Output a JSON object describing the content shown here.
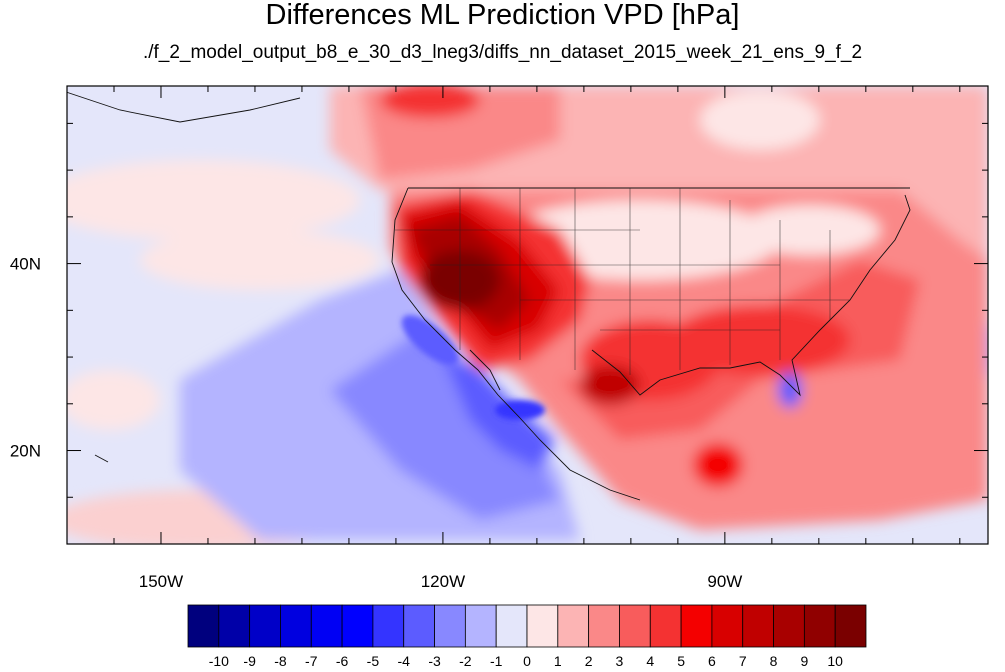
{
  "title": "Differences ML Prediction VPD [hPa]",
  "subtitle": "./f_2_model_output_b8_e_30_d3_lneg3/diffs_nn_dataset_2015_week_21_ens_9_f_2",
  "map": {
    "lon_range": [
      -160,
      -62
    ],
    "lat_range": [
      10,
      59
    ],
    "x_ticks": [
      {
        "lon": -150,
        "label": "150W"
      },
      {
        "lon": -120,
        "label": "120W"
      },
      {
        "lon": -90,
        "label": "90W"
      }
    ],
    "y_ticks": [
      {
        "lat": 40,
        "label": "40N"
      },
      {
        "lat": 20,
        "label": "20N"
      }
    ]
  },
  "colorbar": {
    "labels": [
      "-10",
      "-9",
      "-8",
      "-7",
      "-6",
      "-5",
      "-4",
      "-3",
      "-2",
      "-1",
      "0",
      "1",
      "2",
      "3",
      "4",
      "5",
      "6",
      "7",
      "8",
      "9",
      "10"
    ],
    "colors": [
      "#00007e",
      "#0000a8",
      "#0000c8",
      "#0000e0",
      "#0000f4",
      "#0000ff",
      "#3434ff",
      "#5c5cff",
      "#8888ff",
      "#b4b4ff",
      "#e4e6fa",
      "#fde6e6",
      "#fcb4b4",
      "#fa8888",
      "#f85c5c",
      "#f43232",
      "#f40000",
      "#d80000",
      "#c00000",
      "#a80000",
      "#900000",
      "#7a0000"
    ]
  }
}
